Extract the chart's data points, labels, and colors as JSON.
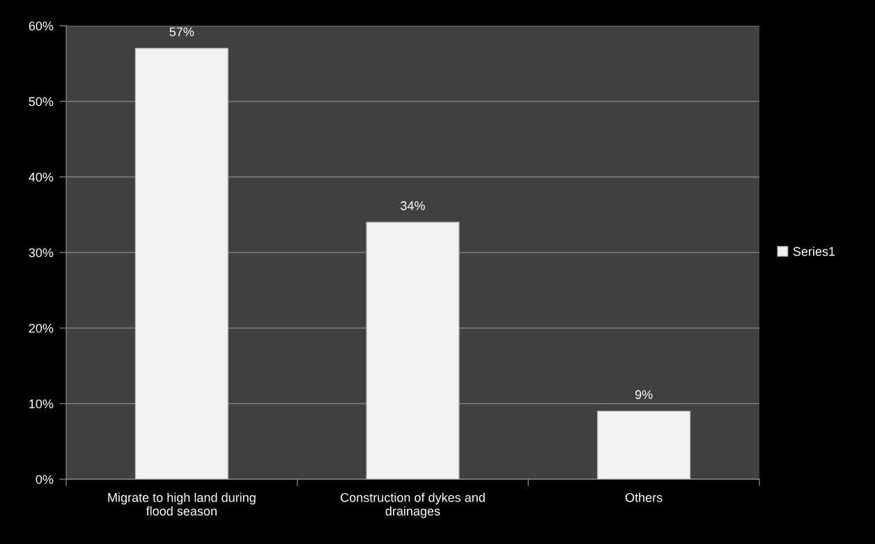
{
  "chart_data": {
    "type": "bar",
    "categories": [
      "Migrate to high land during\nflood season",
      "Construction of dykes and\ndrainages",
      "Others"
    ],
    "series": [
      {
        "name": "Series1",
        "color": "#f2f2f2",
        "values": [
          57,
          34,
          9
        ],
        "value_labels": [
          "57%",
          "34%",
          "9%"
        ]
      }
    ],
    "ylim": [
      0,
      60
    ],
    "yticks": [
      {
        "value": 0,
        "label": "0%"
      },
      {
        "value": 10,
        "label": "10%"
      },
      {
        "value": 20,
        "label": "20%"
      },
      {
        "value": 30,
        "label": "30%"
      },
      {
        "value": 40,
        "label": "40%"
      },
      {
        "value": 50,
        "label": "50%"
      },
      {
        "value": 60,
        "label": "60%"
      }
    ],
    "grid": "y",
    "legend": "right"
  }
}
